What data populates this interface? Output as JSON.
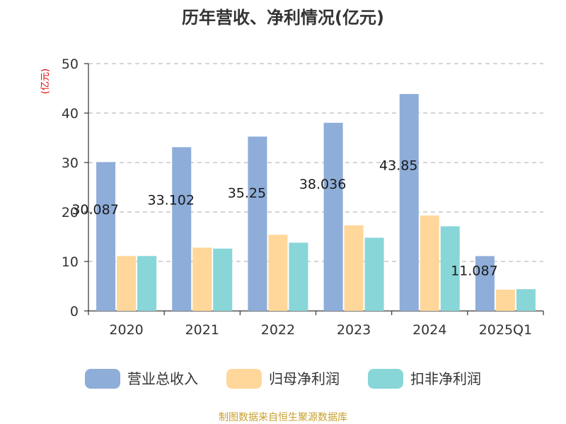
{
  "chart_data": {
    "type": "bar",
    "title": "历年营收、净利情况(亿元)",
    "unit_label": "(亿元)",
    "categories": [
      "2020",
      "2021",
      "2022",
      "2023",
      "2024",
      "2025Q1"
    ],
    "series": [
      {
        "name": "营业总收入",
        "color": "#8eadd9",
        "values": [
          30.087,
          33.102,
          35.25,
          38.036,
          43.85,
          11.087
        ]
      },
      {
        "name": "归母净利润",
        "color": "#ffd79a",
        "values": [
          11.1,
          12.8,
          15.4,
          17.3,
          19.3,
          4.3
        ]
      },
      {
        "name": "扣非净利润",
        "color": "#88d6d8",
        "values": [
          11.1,
          12.6,
          13.8,
          14.8,
          17.1,
          4.4
        ]
      }
    ],
    "data_labels": [
      "30.087",
      "33.102",
      "35.25",
      "38.036",
      "43.85",
      "11.087"
    ],
    "ylim": [
      0,
      50
    ],
    "yticks": [
      0,
      10,
      20,
      30,
      40,
      50
    ],
    "grid": true,
    "legend_position": "bottom"
  },
  "source": "制图数据来自恒生聚源数据库"
}
